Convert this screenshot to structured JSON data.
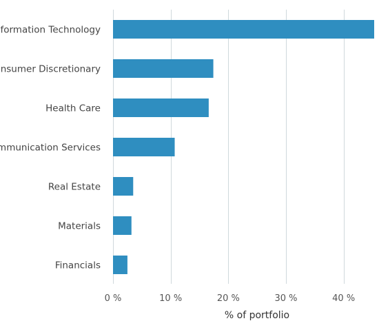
{
  "chart_data": {
    "type": "bar",
    "orientation": "horizontal",
    "categories": [
      "Information Technology",
      "Consumer Discretionary",
      "Health Care",
      "Communication Services",
      "Real Estate",
      "Materials",
      "Financials"
    ],
    "values": [
      45.3,
      17.4,
      16.6,
      10.7,
      3.5,
      3.2,
      2.5
    ],
    "xlabel": "% of portfolio",
    "ylabel": "",
    "xlim": [
      0,
      45.3
    ],
    "xticks": [
      0,
      10,
      20,
      30,
      40
    ],
    "xtick_labels": [
      "0 %",
      "10 %",
      "20 %",
      "30 %",
      "40 %"
    ],
    "grid": true,
    "bar_color": "#2f8ec0",
    "grid_color": "#cfd8dc"
  }
}
